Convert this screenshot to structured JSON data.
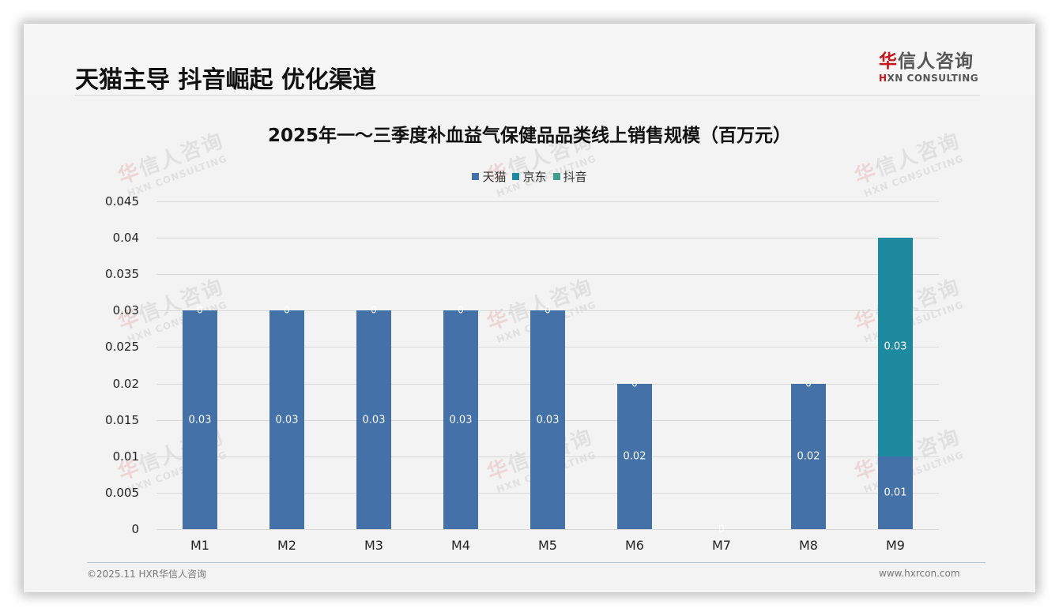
{
  "header": {
    "title": "天猫主导 抖音崛起 优化渠道",
    "logo_cn_red": "华",
    "logo_cn_rest": "信人咨询",
    "logo_en_red": "H",
    "logo_en_rest": "XN CONSULTING"
  },
  "watermark": {
    "cn_red": "华",
    "cn_rest": "信人咨询",
    "en": "HXN CONSULTING"
  },
  "colors": {
    "tmall": "#4472a8",
    "jd": "#1d8aa0",
    "douyin": "#3f9e90",
    "background": "#f3f3f3"
  },
  "chart_data": {
    "type": "bar",
    "stacked": true,
    "title": "2025年一～三季度补血益气保健品品类线上销售规模（百万元）",
    "xlabel": "",
    "ylabel": "",
    "ylim": [
      0,
      0.045
    ],
    "y_ticks": [
      "0",
      "0.005",
      "0.01",
      "0.015",
      "0.02",
      "0.025",
      "0.03",
      "0.035",
      "0.04",
      "0.045"
    ],
    "grid": true,
    "legend_position": "top",
    "categories": [
      "M1",
      "M2",
      "M3",
      "M4",
      "M5",
      "M6",
      "M7",
      "M8",
      "M9"
    ],
    "series": [
      {
        "name": "天猫",
        "color": "#4472a8",
        "values": [
          0.03,
          0.03,
          0.03,
          0.03,
          0.03,
          0.02,
          0,
          0.02,
          0.01
        ]
      },
      {
        "name": "京东",
        "color": "#1d8aa0",
        "values": [
          0,
          0,
          0,
          0,
          0,
          0,
          0,
          0,
          0.03
        ]
      },
      {
        "name": "抖音",
        "color": "#3f9e90",
        "values": [
          0,
          0,
          0,
          0,
          0,
          0,
          0,
          0,
          0
        ]
      }
    ],
    "data_labels": {
      "tmall": [
        "0.03",
        "0.03",
        "0.03",
        "0.03",
        "0.03",
        "0.02",
        "",
        "0.02",
        "0.01"
      ],
      "jd": [
        "",
        "",
        "",
        "",
        "",
        "",
        "",
        "",
        "0.03"
      ],
      "top_zero": [
        "0",
        "0",
        "0",
        "0",
        "0",
        "0",
        "0",
        "0",
        ""
      ]
    }
  },
  "footer": {
    "copyright": "©2025.11 HXR华信人咨询",
    "website": "www.hxrcon.com"
  }
}
